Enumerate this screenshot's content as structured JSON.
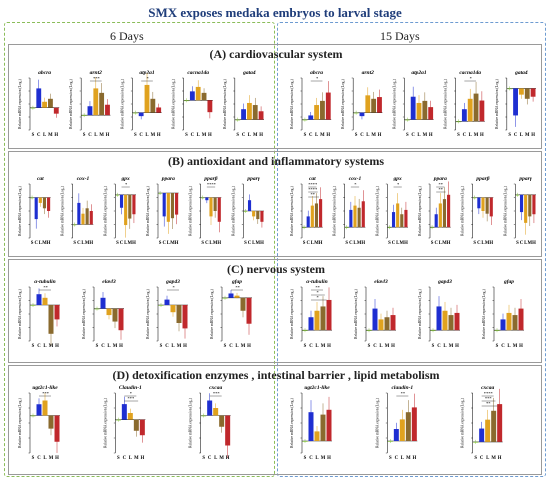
{
  "title": "SMX exposes medaka embryos to larval stage",
  "columns": {
    "left": "6 Days",
    "right": "15 Days"
  },
  "x_categories": [
    "S",
    "C",
    "L",
    "M",
    "H"
  ],
  "colors": {
    "S": "#8bc34a",
    "C": "#1f2fd1",
    "L": "#e0a21f",
    "M": "#8a6a2e",
    "H": "#c0282c"
  },
  "y_axis_label": "Relative mRNA expression (Log₂)",
  "chart_data": [
    {
      "panel": "(A)  cardiovascular system",
      "day": "6 Days",
      "gene": "abcra",
      "type": "bar",
      "categories": [
        "S",
        "C",
        "L",
        "M",
        "H"
      ],
      "values": [
        0,
        1.3,
        0.4,
        0.6,
        -0.4
      ],
      "ylim": [
        -1.5,
        2
      ]
    },
    {
      "panel": "(A)  cardiovascular system",
      "day": "6 Days",
      "gene": "arnt2",
      "type": "bar",
      "categories": [
        "S",
        "C",
        "L",
        "M",
        "H"
      ],
      "values": [
        0,
        0.6,
        1.8,
        1.5,
        0.7
      ],
      "ylim": [
        -1,
        2.5
      ],
      "annotations": [
        "***"
      ]
    },
    {
      "panel": "(A)  cardiovascular system",
      "day": "6 Days",
      "gene": "atp2a1",
      "type": "bar",
      "categories": [
        "S",
        "C",
        "L",
        "M",
        "H"
      ],
      "values": [
        0,
        -0.2,
        1.6,
        0.8,
        0.3
      ],
      "ylim": [
        -1,
        2
      ],
      "annotations": [
        "*"
      ]
    },
    {
      "panel": "(A)  cardiovascular system",
      "day": "6 Days",
      "gene": "cacna1da",
      "type": "bar",
      "categories": [
        "S",
        "C",
        "L",
        "M",
        "H"
      ],
      "values": [
        0,
        0.6,
        0.9,
        0.5,
        -0.8
      ],
      "ylim": [
        -2,
        1.5
      ]
    },
    {
      "panel": "(A)  cardiovascular system",
      "day": "6 Days",
      "gene": "gata4",
      "type": "bar",
      "categories": [
        "S",
        "C",
        "L",
        "M",
        "H"
      ],
      "values": [
        0,
        0.5,
        0.8,
        0.7,
        0.4
      ],
      "ylim": [
        -0.5,
        2
      ]
    },
    {
      "panel": "(A)  cardiovascular system",
      "day": "15 Days",
      "gene": "abcra",
      "type": "bar",
      "categories": [
        "S",
        "C",
        "L",
        "M",
        "H"
      ],
      "values": [
        0,
        0.2,
        0.7,
        0.9,
        1.3
      ],
      "ylim": [
        -0.5,
        2
      ],
      "annotations": [
        "*"
      ]
    },
    {
      "panel": "(A)  cardiovascular system",
      "day": "15 Days",
      "gene": "arnt2",
      "type": "bar",
      "categories": [
        "S",
        "C",
        "L",
        "M",
        "H"
      ],
      "values": [
        0,
        -0.2,
        1.0,
        0.8,
        0.9
      ],
      "ylim": [
        -1,
        2
      ]
    },
    {
      "panel": "(A)  cardiovascular system",
      "day": "15 Days",
      "gene": "atp2a1",
      "type": "bar",
      "categories": [
        "S",
        "C",
        "L",
        "M",
        "H"
      ],
      "values": [
        0,
        1.1,
        0.8,
        0.9,
        0.6
      ],
      "ylim": [
        -0.5,
        2
      ]
    },
    {
      "panel": "(A)  cardiovascular system",
      "day": "15 Days",
      "gene": "cacna1da",
      "type": "bar",
      "categories": [
        "S",
        "C",
        "L",
        "M",
        "H"
      ],
      "values": [
        0,
        0.7,
        1.3,
        1.6,
        1.2
      ],
      "ylim": [
        -0.5,
        2.5
      ],
      "annotations": [
        "*"
      ]
    },
    {
      "panel": "(A)  cardiovascular system",
      "day": "15 Days",
      "gene": "gata4",
      "type": "bar",
      "categories": [
        "S",
        "C",
        "L",
        "M",
        "H"
      ],
      "values": [
        0,
        -1.3,
        -0.3,
        -0.5,
        -0.4
      ],
      "ylim": [
        -2,
        0.5
      ]
    },
    {
      "panel": "(B)  antioxidant and inflammatory systems",
      "day": "6 Days",
      "gene": "cat",
      "type": "bar",
      "categories": [
        "S",
        "C",
        "L",
        "M",
        "H"
      ],
      "values": [
        0,
        -0.8,
        -0.2,
        -0.4,
        -0.5
      ],
      "ylim": [
        -1.5,
        0.5
      ]
    },
    {
      "panel": "(B)  antioxidant and inflammatory systems",
      "day": "6 Days",
      "gene": "cox-1",
      "type": "bar",
      "categories": [
        "S",
        "C",
        "L",
        "M",
        "H"
      ],
      "values": [
        0,
        0.8,
        0.4,
        0.6,
        0.5
      ],
      "ylim": [
        -0.5,
        1.5
      ]
    },
    {
      "panel": "(B)  antioxidant and inflammatory systems",
      "day": "6 Days",
      "gene": "gpx",
      "type": "bar",
      "categories": [
        "S",
        "C",
        "L",
        "M",
        "H"
      ],
      "values": [
        0,
        -0.6,
        -1.4,
        -1.1,
        -0.9
      ],
      "ylim": [
        -2,
        0.5
      ],
      "annotations": [
        "*"
      ]
    },
    {
      "panel": "(B)  antioxidant and inflammatory systems",
      "day": "6 Days",
      "gene": "ppara",
      "type": "bar",
      "categories": [
        "S",
        "C",
        "L",
        "M",
        "H"
      ],
      "values": [
        0,
        -1.3,
        -1.6,
        -1.4,
        -1.2
      ],
      "ylim": [
        -2.5,
        0.5
      ]
    },
    {
      "panel": "(B)  antioxidant and inflammatory systems",
      "day": "6 Days",
      "gene": "pparβ",
      "type": "bar",
      "categories": [
        "S",
        "C",
        "L",
        "M",
        "H"
      ],
      "values": [
        0,
        -0.1,
        -0.7,
        -0.5,
        -0.9
      ],
      "ylim": [
        -1.5,
        0.5
      ],
      "annotations": [
        "****"
      ]
    },
    {
      "panel": "(B)  antioxidant and inflammatory systems",
      "day": "6 Days",
      "gene": "pparγ",
      "type": "bar",
      "categories": [
        "S",
        "C",
        "L",
        "M",
        "H"
      ],
      "values": [
        0,
        0.4,
        -0.2,
        -0.3,
        -0.4
      ],
      "ylim": [
        -1,
        1
      ]
    },
    {
      "panel": "(B)  antioxidant and inflammatory systems",
      "day": "15 Days",
      "gene": "cat",
      "type": "bar",
      "categories": [
        "S",
        "C",
        "L",
        "M",
        "H"
      ],
      "values": [
        0,
        0.5,
        1.0,
        1.1,
        1.3
      ],
      "ylim": [
        -0.5,
        2
      ],
      "annotations": [
        "****",
        "****",
        "**"
      ]
    },
    {
      "panel": "(B)  antioxidant and inflammatory systems",
      "day": "15 Days",
      "gene": "cox-1",
      "type": "bar",
      "categories": [
        "S",
        "C",
        "L",
        "M",
        "H"
      ],
      "values": [
        0,
        0.8,
        1.0,
        0.9,
        1.2
      ],
      "ylim": [
        -0.5,
        2
      ],
      "annotations": [
        "*"
      ]
    },
    {
      "panel": "(B)  antioxidant and inflammatory systems",
      "day": "15 Days",
      "gene": "gpx",
      "type": "bar",
      "categories": [
        "S",
        "C",
        "L",
        "M",
        "H"
      ],
      "values": [
        0,
        0.7,
        1.1,
        0.6,
        0.8
      ],
      "ylim": [
        -0.5,
        2
      ],
      "annotations": [
        "*"
      ]
    },
    {
      "panel": "(B)  antioxidant and inflammatory systems",
      "day": "15 Days",
      "gene": "ppara",
      "type": "bar",
      "categories": [
        "S",
        "C",
        "L",
        "M",
        "H"
      ],
      "values": [
        0,
        0.6,
        1.1,
        1.3,
        1.5
      ],
      "ylim": [
        -0.5,
        2
      ],
      "annotations": [
        "**",
        "**"
      ]
    },
    {
      "panel": "(B)  antioxidant and inflammatory systems",
      "day": "15 Days",
      "gene": "pparβ",
      "type": "bar",
      "categories": [
        "S",
        "C",
        "L",
        "M",
        "H"
      ],
      "values": [
        0,
        -0.4,
        -0.5,
        -0.6,
        -0.7
      ],
      "ylim": [
        -1.5,
        0.5
      ]
    },
    {
      "panel": "(B)  antioxidant and inflammatory systems",
      "day": "15 Days",
      "gene": "pparγ",
      "type": "bar",
      "categories": [
        "S",
        "C",
        "L",
        "M",
        "H"
      ],
      "values": [
        0,
        -0.8,
        -1.3,
        -1.0,
        -0.9
      ],
      "ylim": [
        -2,
        0.5
      ]
    },
    {
      "panel": "(C)  nervous  system",
      "day": "6 Days",
      "gene": "α-tubulin",
      "type": "bar",
      "categories": [
        "S",
        "C",
        "L",
        "M",
        "H"
      ],
      "values": [
        0,
        0.6,
        0.4,
        -1.6,
        -0.8
      ],
      "ylim": [
        -2,
        1
      ],
      "annotations": [
        "**"
      ]
    },
    {
      "panel": "(C)  nervous  system",
      "day": "6 Days",
      "gene": "elavl3",
      "type": "bar",
      "categories": [
        "S",
        "C",
        "L",
        "M",
        "H"
      ],
      "values": [
        0,
        0.5,
        -0.3,
        -0.6,
        -1.0
      ],
      "ylim": [
        -1.5,
        1
      ]
    },
    {
      "panel": "(C)  nervous  system",
      "day": "6 Days",
      "gene": "gap43",
      "type": "bar",
      "categories": [
        "S",
        "C",
        "L",
        "M",
        "H"
      ],
      "values": [
        0,
        0.3,
        -0.4,
        -1.0,
        -1.3
      ],
      "ylim": [
        -2,
        1
      ],
      "annotations": [
        "*"
      ]
    },
    {
      "panel": "(C)  nervous  system",
      "day": "6 Days",
      "gene": "gfap",
      "type": "bar",
      "categories": [
        "S",
        "C",
        "L",
        "M",
        "H"
      ],
      "values": [
        0,
        0.2,
        0.1,
        -0.6,
        -1.2
      ],
      "ylim": [
        -2,
        0.5
      ],
      "annotations": [
        "**"
      ]
    },
    {
      "panel": "(C)  nervous  system",
      "day": "15 Days",
      "gene": "α-tubulin",
      "type": "bar",
      "categories": [
        "S",
        "C",
        "L",
        "M",
        "H"
      ],
      "values": [
        0,
        0.6,
        0.9,
        1.1,
        1.4
      ],
      "ylim": [
        -0.5,
        2
      ],
      "annotations": [
        "**",
        "*",
        "*"
      ]
    },
    {
      "panel": "(C)  nervous  system",
      "day": "15 Days",
      "gene": "elavl3",
      "type": "bar",
      "categories": [
        "S",
        "C",
        "L",
        "M",
        "H"
      ],
      "values": [
        0,
        1.0,
        0.5,
        0.6,
        0.7
      ],
      "ylim": [
        -0.5,
        2
      ]
    },
    {
      "panel": "(C)  nervous  system",
      "day": "15 Days",
      "gene": "gap43",
      "type": "bar",
      "categories": [
        "S",
        "C",
        "L",
        "M",
        "H"
      ],
      "values": [
        0,
        1.1,
        0.9,
        0.7,
        0.8
      ],
      "ylim": [
        -0.5,
        2
      ]
    },
    {
      "panel": "(C)  nervous  system",
      "day": "15 Days",
      "gene": "gfap",
      "type": "bar",
      "categories": [
        "S",
        "C",
        "L",
        "M",
        "H"
      ],
      "values": [
        0,
        0.5,
        0.8,
        0.7,
        1.0
      ],
      "ylim": [
        -0.5,
        2
      ]
    },
    {
      "panel": "(D) detoxification enzymes , intestinal barrier , lipid metabolism",
      "day": "6 Days",
      "gene": "ugt2c1-like",
      "type": "bar",
      "categories": [
        "S",
        "C",
        "L",
        "M",
        "H"
      ],
      "values": [
        0,
        0.6,
        0.8,
        -0.7,
        -1.4
      ],
      "ylim": [
        -2,
        1.2
      ],
      "annotations": [
        "***"
      ]
    },
    {
      "panel": "(D) detoxification enzymes , intestinal barrier , lipid metabolism",
      "day": "6 Days",
      "gene": "Claudin-1",
      "type": "bar",
      "categories": [
        "S",
        "C",
        "L",
        "M",
        "H"
      ],
      "values": [
        0,
        0.7,
        0.3,
        -0.5,
        -0.7
      ],
      "ylim": [
        -1.5,
        1.2
      ],
      "annotations": [
        "*",
        "***"
      ]
    },
    {
      "panel": "(D) detoxification enzymes , intestinal barrier , lipid metabolism",
      "day": "6 Days",
      "gene": "cxcaa",
      "type": "bar",
      "categories": [
        "S",
        "C",
        "L",
        "M",
        "H"
      ],
      "values": [
        0,
        0.8,
        0.4,
        -0.6,
        -1.6
      ],
      "ylim": [
        -2,
        1.2
      ],
      "annotations": [
        "***"
      ]
    },
    {
      "panel": "(D) detoxification enzymes , intestinal barrier , lipid metabolism",
      "day": "15 Days",
      "gene": "ugt2c1-like",
      "type": "bar",
      "categories": [
        "S",
        "C",
        "L",
        "M",
        "H"
      ],
      "values": [
        0,
        1.2,
        0.4,
        1.1,
        1.3
      ],
      "ylim": [
        -0.5,
        2
      ]
    },
    {
      "panel": "(D) detoxification enzymes , intestinal barrier , lipid metabolism",
      "day": "15 Days",
      "gene": "claudin-1",
      "type": "bar",
      "categories": [
        "S",
        "C",
        "L",
        "M",
        "H"
      ],
      "values": [
        0,
        0.5,
        0.9,
        1.2,
        1.4
      ],
      "ylim": [
        -0.5,
        2
      ],
      "annotations": [
        "**"
      ]
    },
    {
      "panel": "(D) detoxification enzymes , intestinal barrier , lipid metabolism",
      "day": "15 Days",
      "gene": "cxcaa",
      "type": "bar",
      "categories": [
        "S",
        "C",
        "L",
        "M",
        "H"
      ],
      "values": [
        0,
        0.6,
        1.0,
        1.4,
        1.7
      ],
      "ylim": [
        -0.5,
        2.2
      ],
      "annotations": [
        "****",
        "***",
        "**"
      ]
    }
  ]
}
